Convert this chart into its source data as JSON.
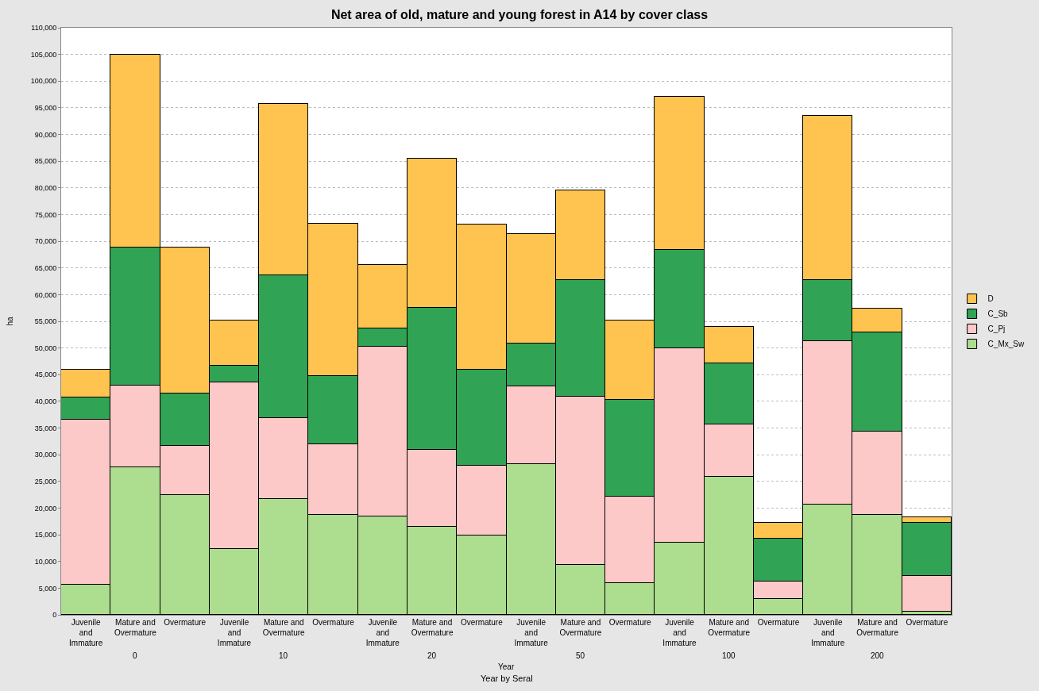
{
  "chart_data": {
    "type": "bar",
    "stacked": true,
    "title": "Net area of old, mature and young forest in A14 by cover class",
    "xlabel": "Year by Seral",
    "ylabel": "ha",
    "categories": [
      "Juvenile and Immature",
      "Mature and Overmature",
      "Overmature",
      "Juvenile and Immature",
      "Mature and Overmature",
      "Overmature",
      "Juvenile and Immature",
      "Mature and Overmature",
      "Overmature",
      "Juvenile and Immature",
      "Mature and Overmature",
      "Overmature",
      "Juvenile and Immature",
      "Mature and Overmature",
      "Overmature",
      "Juvenile and Immature",
      "Mature and Overmature",
      "Overmature"
    ],
    "series": [
      {
        "name": "C_Mx_Sw",
        "color": "#addd8e",
        "values": [
          5700,
          27700,
          22500,
          12400,
          21700,
          18800,
          18500,
          16500,
          14800,
          28200,
          9400,
          6000,
          13500,
          25900,
          2900,
          20700,
          18800,
          600
        ]
      },
      {
        "name": "C_Pj",
        "color": "#fcc8c8",
        "values": [
          30800,
          15200,
          9200,
          31100,
          15100,
          13200,
          31700,
          14400,
          13200,
          14600,
          31500,
          16100,
          36400,
          9800,
          3400,
          30600,
          15500,
          6700
        ]
      },
      {
        "name": "C_Sb",
        "color": "#31a354",
        "values": [
          4200,
          25900,
          9800,
          3200,
          26800,
          12700,
          3400,
          26600,
          18000,
          8100,
          21900,
          18200,
          18500,
          11400,
          7900,
          11400,
          18600,
          9900
        ]
      },
      {
        "name": "D",
        "color": "#fec44f",
        "values": [
          5300,
          36100,
          27300,
          8500,
          32200,
          28600,
          12000,
          27900,
          27100,
          20400,
          16800,
          14800,
          28600,
          6900,
          3100,
          30800,
          4500,
          1100
        ]
      }
    ],
    "annotations": [
      "0",
      "10",
      "20",
      "50",
      "100",
      "200",
      "Year"
    ],
    "ylim": [
      0,
      110000
    ],
    "yticks": [
      {
        "value": 0,
        "label": "0"
      },
      {
        "value": 5000,
        "label": "5,000"
      },
      {
        "value": 10000,
        "label": "10,000"
      },
      {
        "value": 15000,
        "label": "15,000"
      },
      {
        "value": 20000,
        "label": "20,000"
      },
      {
        "value": 25000,
        "label": "25,000"
      },
      {
        "value": 30000,
        "label": "30,000"
      },
      {
        "value": 35000,
        "label": "35,000"
      },
      {
        "value": 40000,
        "label": "40,000"
      },
      {
        "value": 45000,
        "label": "45,000"
      },
      {
        "value": 50000,
        "label": "50,000"
      },
      {
        "value": 55000,
        "label": "55,000"
      },
      {
        "value": 60000,
        "label": "60,000"
      },
      {
        "value": 65000,
        "label": "65,000"
      },
      {
        "value": 70000,
        "label": "70,000"
      },
      {
        "value": 75000,
        "label": "75,000"
      },
      {
        "value": 80000,
        "label": "80,000"
      },
      {
        "value": 85000,
        "label": "85,000"
      },
      {
        "value": 90000,
        "label": "90,000"
      },
      {
        "value": 95000,
        "label": "95,000"
      },
      {
        "value": 100000,
        "label": "100,000"
      },
      {
        "value": 105000,
        "label": "105,000"
      },
      {
        "value": 110000,
        "label": "110,000"
      }
    ],
    "grid": "y",
    "legend": "right"
  }
}
